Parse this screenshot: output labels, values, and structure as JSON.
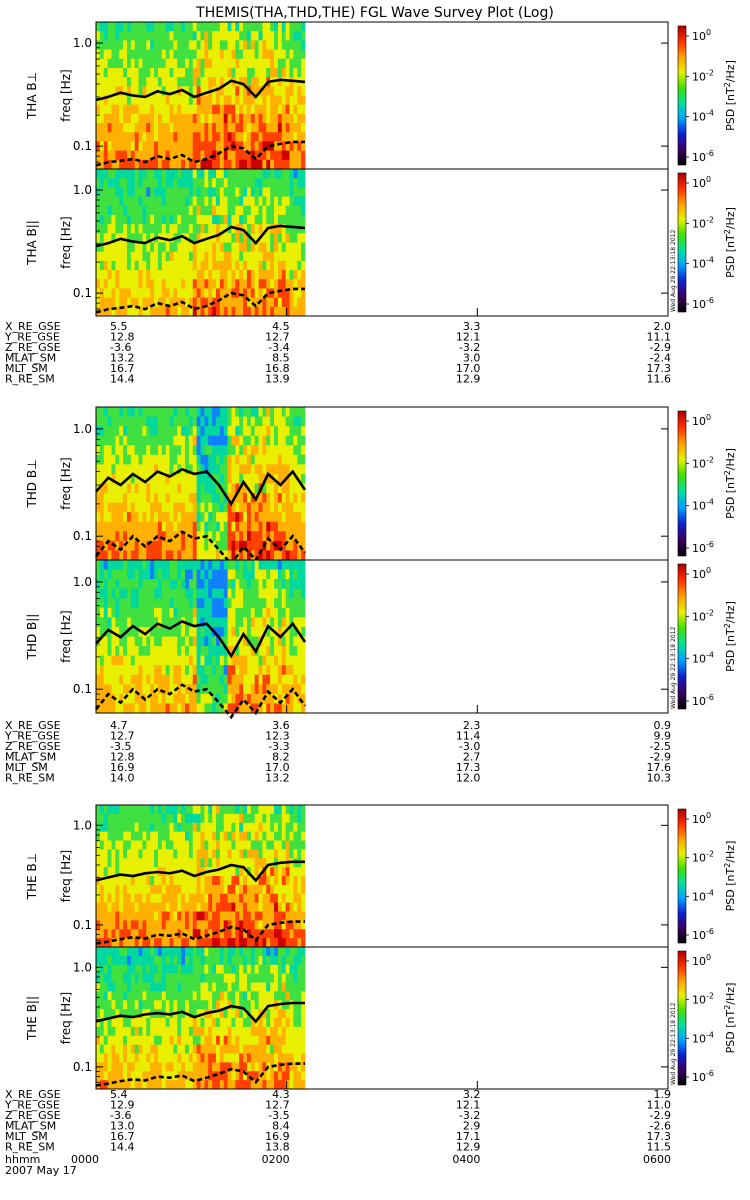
{
  "chart_data": {
    "type": "heatmap",
    "title": "THEMIS(THA,THD,THE) FGL Wave Survey Plot (Log)",
    "date_label": "2007 May 17",
    "time_label": "hhmm",
    "time_ticks": [
      "0000",
      "0200",
      "0400",
      "0600"
    ],
    "x_range": [
      "0000",
      "0600"
    ],
    "data_extent": [
      "0000",
      "0220"
    ],
    "ylim": [
      0.06,
      1.6
    ],
    "y_scale": "log",
    "y_ticks": [
      "1.0",
      "0.1"
    ],
    "y_tick_values": [
      1.0,
      0.1
    ],
    "colorbar": {
      "label": "PSD [nT",
      "label_sup": "2",
      "label_tail": "/Hz]",
      "scale": "log",
      "ticks": [
        {
          "base": "10",
          "exp": "0",
          "value": 1
        },
        {
          "base": "10",
          "exp": "-2",
          "value": 0.01
        },
        {
          "base": "10",
          "exp": "-4",
          "value": 0.0001
        },
        {
          "base": "10",
          "exp": "-6",
          "value": 1e-06
        }
      ],
      "colors": [
        "#000000",
        "#3a0060",
        "#1020d0",
        "#00a0ff",
        "#00e0a0",
        "#40e000",
        "#e8f000",
        "#ffa000",
        "#ff3000",
        "#b00000"
      ]
    },
    "timestamp": "Wed Aug 29 22:13:18 2012",
    "probes": [
      {
        "panels": [
          {
            "probe": "THA",
            "comp": "B⊥",
            "ylabel": "freq [Hz]"
          },
          {
            "probe": "THA",
            "comp": "B||",
            "ylabel": "freq [Hz]"
          }
        ],
        "fce_line": [
          0.28,
          0.3,
          0.33,
          0.31,
          0.3,
          0.34,
          0.32,
          0.35,
          0.3,
          0.33,
          0.36,
          0.43,
          0.4,
          0.3,
          0.42,
          0.44,
          0.43,
          0.42
        ],
        "half_line": [
          0.065,
          0.07,
          0.072,
          0.075,
          0.07,
          0.08,
          0.075,
          0.082,
          0.07,
          0.075,
          0.085,
          0.1,
          0.095,
          0.075,
          0.1,
          0.105,
          0.11,
          0.11
        ],
        "ephemeris": [
          {
            "name": "X_RE_GSE",
            "values": [
              "5.5",
              "4.5",
              "3.3",
              "2.0"
            ]
          },
          {
            "name": "Y_RE_GSE",
            "values": [
              "12.8",
              "12.7",
              "12.1",
              "11.1"
            ]
          },
          {
            "name": "Z_RE_GSE",
            "values": [
              "-3.6",
              "-3.4",
              "-3.2",
              "-2.9"
            ]
          },
          {
            "name": "MLAT_SM",
            "values": [
              "13.2",
              "8.5",
              "3.0",
              "-2.4"
            ]
          },
          {
            "name": "MLT_SM",
            "values": [
              "16.7",
              "16.8",
              "17.0",
              "17.3"
            ]
          },
          {
            "name": "R_RE_SM",
            "values": [
              "14.4",
              "13.9",
              "12.9",
              "11.6"
            ]
          }
        ]
      },
      {
        "panels": [
          {
            "probe": "THD",
            "comp": "B⊥",
            "ylabel": "freq [Hz]"
          },
          {
            "probe": "THD",
            "comp": "B||",
            "ylabel": "freq [Hz]"
          }
        ],
        "fce_line": [
          0.26,
          0.35,
          0.3,
          0.38,
          0.32,
          0.4,
          0.36,
          0.42,
          0.38,
          0.4,
          0.3,
          0.2,
          0.32,
          0.22,
          0.38,
          0.3,
          0.4,
          0.27
        ],
        "half_line": [
          0.065,
          0.09,
          0.075,
          0.1,
          0.08,
          0.1,
          0.09,
          0.11,
          0.095,
          0.1,
          0.075,
          0.055,
          0.08,
          0.06,
          0.095,
          0.075,
          0.1,
          0.07
        ],
        "ephemeris": [
          {
            "name": "X_RE_GSE",
            "values": [
              "4.7",
              "3.6",
              "2.3",
              "0.9"
            ]
          },
          {
            "name": "Y_RE_GSE",
            "values": [
              "12.7",
              "12.3",
              "11.4",
              "9.9"
            ]
          },
          {
            "name": "Z_RE_GSE",
            "values": [
              "-3.5",
              "-3.3",
              "-3.0",
              "-2.5"
            ]
          },
          {
            "name": "MLAT_SM",
            "values": [
              "12.8",
              "8.2",
              "2.7",
              "-2.9"
            ]
          },
          {
            "name": "MLT_SM",
            "values": [
              "16.9",
              "17.0",
              "17.3",
              "17.6"
            ]
          },
          {
            "name": "R_RE_SM",
            "values": [
              "14.0",
              "13.2",
              "12.0",
              "10.3"
            ]
          }
        ]
      },
      {
        "panels": [
          {
            "probe": "THE",
            "comp": "B⊥",
            "ylabel": "freq [Hz]"
          },
          {
            "probe": "THE",
            "comp": "B||",
            "ylabel": "freq [Hz]"
          }
        ],
        "fce_line": [
          0.28,
          0.3,
          0.32,
          0.31,
          0.33,
          0.34,
          0.33,
          0.35,
          0.31,
          0.34,
          0.36,
          0.4,
          0.38,
          0.28,
          0.4,
          0.42,
          0.43,
          0.43
        ],
        "half_line": [
          0.065,
          0.068,
          0.072,
          0.075,
          0.073,
          0.08,
          0.078,
          0.082,
          0.072,
          0.078,
          0.085,
          0.095,
          0.09,
          0.07,
          0.1,
          0.105,
          0.108,
          0.108
        ],
        "ephemeris": [
          {
            "name": "X_RE_GSE",
            "values": [
              "5.4",
              "4.3",
              "3.2",
              "1.9"
            ]
          },
          {
            "name": "Y_RE_GSE",
            "values": [
              "12.9",
              "12.7",
              "12.1",
              "11.0"
            ]
          },
          {
            "name": "Z_RE_GSE",
            "values": [
              "-3.6",
              "-3.5",
              "-3.2",
              "-2.9"
            ]
          },
          {
            "name": "MLAT_SM",
            "values": [
              "13.0",
              "8.4",
              "2.9",
              "-2.6"
            ]
          },
          {
            "name": "MLT_SM",
            "values": [
              "16.7",
              "16.9",
              "17.1",
              "17.3"
            ]
          },
          {
            "name": "R_RE_SM",
            "values": [
              "14.4",
              "13.8",
              "12.9",
              "11.5"
            ]
          }
        ]
      }
    ]
  }
}
